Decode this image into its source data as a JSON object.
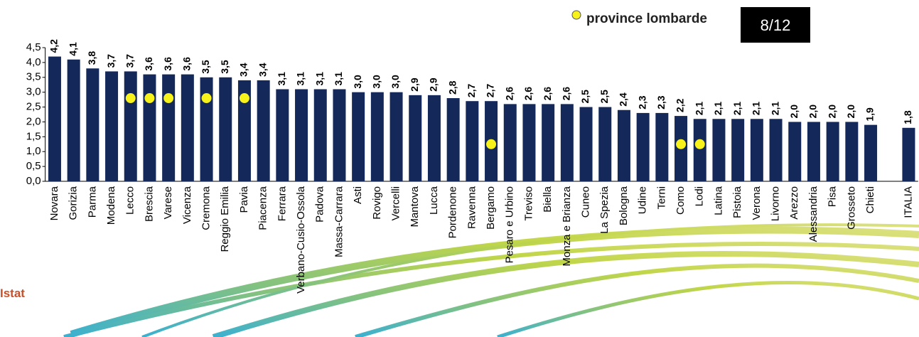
{
  "chart_data": {
    "type": "bar",
    "categories": [
      "Novara",
      "Gorizia",
      "Parma",
      "Modena",
      "Lecco",
      "Brescia",
      "Varese",
      "Vicenza",
      "Cremona",
      "Reggio Emilia",
      "Pavia",
      "Piacenza",
      "Ferrara",
      "Verbano-Cusio-Ossola",
      "Padova",
      "Massa-Carrara",
      "Asti",
      "Rovigo",
      "Vercelli",
      "Mantova",
      "Lucca",
      "Pordenone",
      "Ravenna",
      "Bergamo",
      "Pesaro e Urbino",
      "Treviso",
      "Biella",
      "Monza e Brianza",
      "Cuneo",
      "La Spezia",
      "Bologna",
      "Udine",
      "Terni",
      "Como",
      "Lodi",
      "Latina",
      "Pistoia",
      "Verona",
      "Livorno",
      "Arezzo",
      "Alessandria",
      "Pisa",
      "Grosseto",
      "Chieti",
      null,
      "ITALIA"
    ],
    "values": [
      4.2,
      4.1,
      3.8,
      3.7,
      3.7,
      3.6,
      3.6,
      3.6,
      3.5,
      3.5,
      3.4,
      3.4,
      3.1,
      3.1,
      3.1,
      3.1,
      3.0,
      3.0,
      3.0,
      2.9,
      2.9,
      2.8,
      2.7,
      2.7,
      2.6,
      2.6,
      2.6,
      2.6,
      2.5,
      2.5,
      2.4,
      2.3,
      2.3,
      2.2,
      2.1,
      2.1,
      2.1,
      2.1,
      2.1,
      2.0,
      2.0,
      2.0,
      2.0,
      1.9,
      null,
      1.8
    ],
    "value_labels": [
      "4,2",
      "4,1",
      "3,8",
      "3,7",
      "3,7",
      "3,6",
      "3,6",
      "3,6",
      "3,5",
      "3,5",
      "3,4",
      "3,4",
      "3,1",
      "3,1",
      "3,1",
      "3,1",
      "3,0",
      "3,0",
      "3,0",
      "2,9",
      "2,9",
      "2,8",
      "2,7",
      "2,7",
      "2,6",
      "2,6",
      "2,6",
      "2,6",
      "2,5",
      "2,5",
      "2,4",
      "2,3",
      "2,3",
      "2,2",
      "2,1",
      "2,1",
      "2,1",
      "2,1",
      "2,1",
      "2,0",
      "2,0",
      "2,0",
      "2,0",
      "1,9",
      null,
      "1,8"
    ],
    "color": "#14285a",
    "ylim": [
      0,
      4.5
    ],
    "yticks": [
      {
        "value": 0,
        "label": "0,0"
      },
      {
        "value": 0.5,
        "label": "0,5"
      },
      {
        "value": 1,
        "label": "1,0"
      },
      {
        "value": 1.5,
        "label": "1,5"
      },
      {
        "value": 2,
        "label": "2,0"
      },
      {
        "value": 2.5,
        "label": "2,5"
      },
      {
        "value": 3,
        "label": "3,0"
      },
      {
        "value": 3.5,
        "label": "3,5"
      },
      {
        "value": 4,
        "label": "4,0"
      },
      {
        "value": 4.5,
        "label": "4,5"
      }
    ],
    "grid": false,
    "highlight": {
      "label": "province lombarde",
      "color": "#f7f21a",
      "categories": [
        "Lecco",
        "Brescia",
        "Varese",
        "Cremona",
        "Pavia",
        "Bergamo",
        "Como",
        "Lodi"
      ]
    },
    "page_number": "8/12",
    "source": "Istat"
  }
}
